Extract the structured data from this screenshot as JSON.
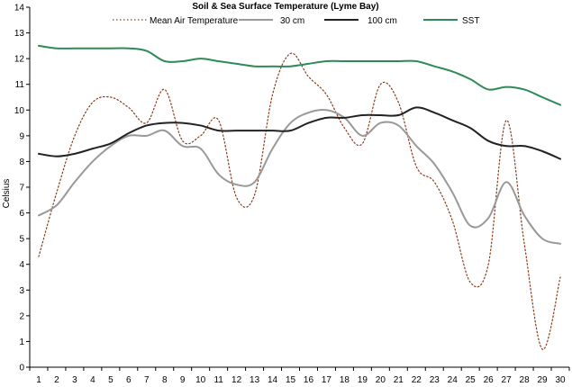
{
  "chart_data": {
    "type": "line",
    "title": "Soil & Sea Surface Temperature (Lyme Bay)",
    "ylabel": "Celsius",
    "xlabel": "",
    "ylim": [
      0,
      14
    ],
    "yticks": [
      0,
      1,
      2,
      3,
      4,
      5,
      6,
      7,
      8,
      9,
      10,
      11,
      12,
      13,
      14
    ],
    "x": [
      1,
      2,
      3,
      4,
      5,
      6,
      7,
      8,
      9,
      10,
      11,
      12,
      13,
      14,
      15,
      16,
      17,
      18,
      19,
      20,
      21,
      22,
      23,
      24,
      25,
      26,
      27,
      28,
      29,
      30
    ],
    "grid": false,
    "legend": "top",
    "series": [
      {
        "name": "Mean Air Temperature",
        "color": "#8b3a1a",
        "style": "dotted",
        "values": [
          4.3,
          6.8,
          9.0,
          10.3,
          10.5,
          10.1,
          9.5,
          10.8,
          8.8,
          9.0,
          9.6,
          6.6,
          6.7,
          10.6,
          12.2,
          11.3,
          10.6,
          9.3,
          8.7,
          11.0,
          10.3,
          7.8,
          7.2,
          5.7,
          3.3,
          4.0,
          9.6,
          4.8,
          0.7,
          3.5
        ]
      },
      {
        "name": "30 cm",
        "color": "#999999",
        "style": "solid",
        "values": [
          5.9,
          6.3,
          7.2,
          8.0,
          8.6,
          9.0,
          9.0,
          9.2,
          8.6,
          8.5,
          7.5,
          7.1,
          7.2,
          8.5,
          9.5,
          9.9,
          10.0,
          9.7,
          9.0,
          9.5,
          9.4,
          8.6,
          7.9,
          6.8,
          5.5,
          5.8,
          7.2,
          5.9,
          5.0,
          4.8
        ]
      },
      {
        "name": "100 cm",
        "color": "#222222",
        "style": "solid",
        "values": [
          8.3,
          8.2,
          8.3,
          8.5,
          8.7,
          9.1,
          9.4,
          9.5,
          9.5,
          9.4,
          9.2,
          9.2,
          9.2,
          9.2,
          9.2,
          9.5,
          9.7,
          9.7,
          9.8,
          9.8,
          9.8,
          10.1,
          9.9,
          9.6,
          9.3,
          8.8,
          8.6,
          8.6,
          8.4,
          8.1
        ]
      },
      {
        "name": "SST",
        "color": "#2e8b57",
        "style": "solid",
        "values": [
          12.5,
          12.4,
          12.4,
          12.4,
          12.4,
          12.4,
          12.3,
          11.9,
          11.9,
          12.0,
          11.9,
          11.8,
          11.7,
          11.7,
          11.7,
          11.8,
          11.9,
          11.9,
          11.9,
          11.9,
          11.9,
          11.9,
          11.7,
          11.5,
          11.2,
          10.8,
          10.9,
          10.8,
          10.5,
          10.2
        ]
      }
    ]
  }
}
